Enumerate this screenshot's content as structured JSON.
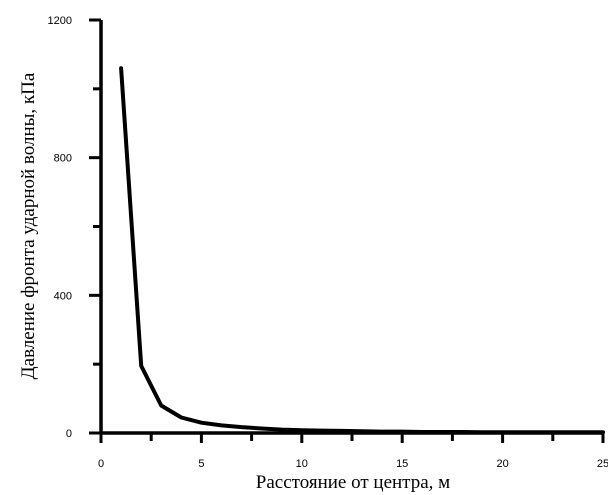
{
  "chart_data": {
    "type": "line",
    "title": "",
    "xlabel": "Расстояние от центра, м",
    "ylabel": "Давление фронта ударной волны, кПа",
    "xlim": [
      0,
      25
    ],
    "ylim": [
      0,
      1200
    ],
    "x_ticks": [
      0,
      5,
      10,
      15,
      20,
      25
    ],
    "x_tick_labels": [
      "0",
      "5",
      "10",
      "15",
      "20",
      "25"
    ],
    "y_ticks": [
      0,
      400,
      800,
      1200
    ],
    "y_tick_labels": [
      "0",
      "400",
      "800",
      "1200"
    ],
    "grid": false,
    "legend": "none",
    "series": [
      {
        "x": [
          1,
          2,
          3,
          4,
          5,
          6,
          7,
          8,
          9,
          10,
          11,
          12,
          13,
          14,
          15,
          16,
          17,
          18,
          19,
          20,
          21,
          22,
          23,
          24,
          25
        ],
        "y": [
          1060,
          195,
          80,
          45,
          30,
          22,
          17,
          13,
          10,
          8,
          7,
          6,
          5,
          4,
          4,
          3,
          3,
          3,
          2,
          2,
          2,
          2,
          2,
          2,
          2
        ],
        "color": "#000000"
      }
    ]
  }
}
